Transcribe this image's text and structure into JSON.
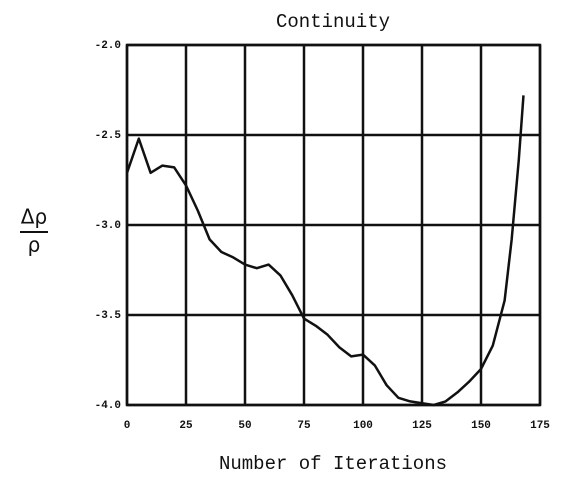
{
  "chart_data": {
    "type": "line",
    "title": "Continuity",
    "xlabel": "Number of Iterations",
    "ylabel": {
      "numerator": "Δρ",
      "denominator": "ρ"
    },
    "x": [
      0,
      5,
      10,
      15,
      20,
      25,
      30,
      35,
      40,
      45,
      50,
      55,
      60,
      65,
      70,
      75,
      80,
      85,
      90,
      95,
      100,
      105,
      110,
      115,
      120,
      125,
      130,
      135,
      140,
      145,
      150,
      155,
      160,
      163,
      166,
      168
    ],
    "series": [
      {
        "color": "#111111",
        "values": [
          -2.71,
          -2.52,
          -2.71,
          -2.67,
          -2.68,
          -2.78,
          -2.92,
          -3.08,
          -3.15,
          -3.18,
          -3.22,
          -3.24,
          -3.22,
          -3.28,
          -3.39,
          -3.52,
          -3.56,
          -3.61,
          -3.68,
          -3.73,
          -3.72,
          -3.78,
          -3.89,
          -3.96,
          -3.98,
          -3.99,
          -4.0,
          -3.98,
          -3.93,
          -3.87,
          -3.8,
          -3.67,
          -3.42,
          -3.08,
          -2.64,
          -2.28
        ]
      }
    ],
    "xlim": [
      0,
      175
    ],
    "ylim": [
      -4.0,
      -2.0
    ],
    "xticks": [
      0,
      25,
      50,
      75,
      100,
      125,
      150,
      175
    ],
    "yticks": [
      {
        "value": -4.0,
        "label": "-4.0"
      },
      -3.5,
      {
        "value": -3.0,
        "label": "-3.0"
      },
      -2.5,
      {
        "value": -2.0,
        "label": "-2.0"
      }
    ],
    "grid": true
  }
}
